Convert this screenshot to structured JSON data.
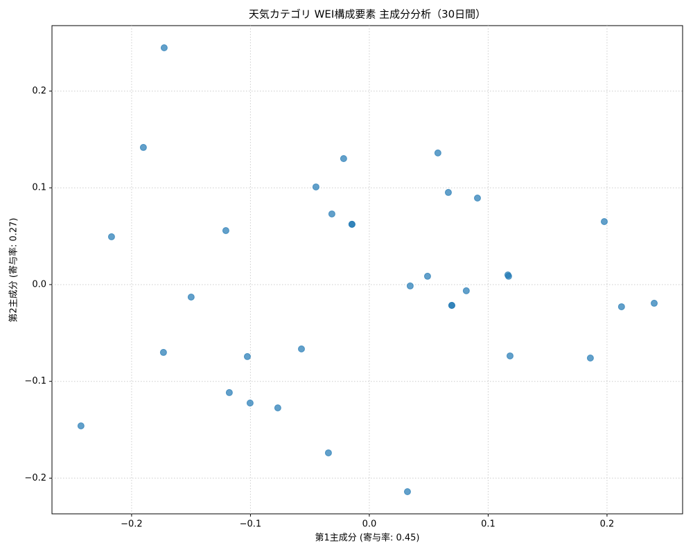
{
  "chart_data": {
    "type": "scatter",
    "title": "天気カテゴリ WEI構成要素 主成分分析（30日間）",
    "x_label": "第1主成分 (寄与率: 0.45)",
    "y_label": "第2主成分 (寄与率: 0.27)",
    "color": "#1f77b4",
    "grid": true,
    "x": [
      -0.1726,
      -0.1901,
      -0.2169,
      -0.1207,
      -0.1499,
      -0.1732,
      -0.2426,
      -0.1178,
      -0.1026,
      -0.1003,
      -0.077,
      -0.0571,
      -0.0344,
      -0.0449,
      -0.0216,
      -0.0315,
      -0.0146,
      -0.0146,
      0.0321,
      0.0344,
      0.049,
      0.0577,
      0.0665,
      0.0694,
      0.0694,
      0.0816,
      0.091,
      0.1166,
      0.1172,
      0.1184,
      0.186,
      0.1977,
      0.2122,
      0.2397
    ],
    "values": [
      0.2447,
      0.1417,
      0.0494,
      0.0558,
      -0.0129,
      -0.0701,
      -0.146,
      -0.1116,
      -0.0744,
      -0.1224,
      -0.1274,
      -0.0665,
      -0.1739,
      0.1009,
      0.1302,
      0.073,
      0.0623,
      0.0623,
      -0.214,
      -0.0014,
      0.0086,
      0.136,
      0.0952,
      -0.0215,
      -0.0215,
      -0.0064,
      0.0894,
      0.01,
      0.0086,
      -0.0737,
      -0.0759,
      0.0651,
      -0.0229,
      -0.0193
    ],
    "xlim": [
      -0.267,
      0.2636
    ],
    "ylim": [
      -0.2369,
      0.2676
    ],
    "xticks": [
      {
        "value": -0.2,
        "label": "−0.2"
      },
      {
        "value": -0.1,
        "label": "−0.1"
      },
      {
        "value": 0,
        "label": "0.0"
      },
      0.1,
      0.2
    ],
    "yticks": [
      {
        "value": -0.2,
        "label": "−0.2"
      },
      {
        "value": -0.1,
        "label": "−0.1"
      },
      {
        "value": 0,
        "label": "0.0"
      },
      0.1,
      0.2
    ]
  }
}
